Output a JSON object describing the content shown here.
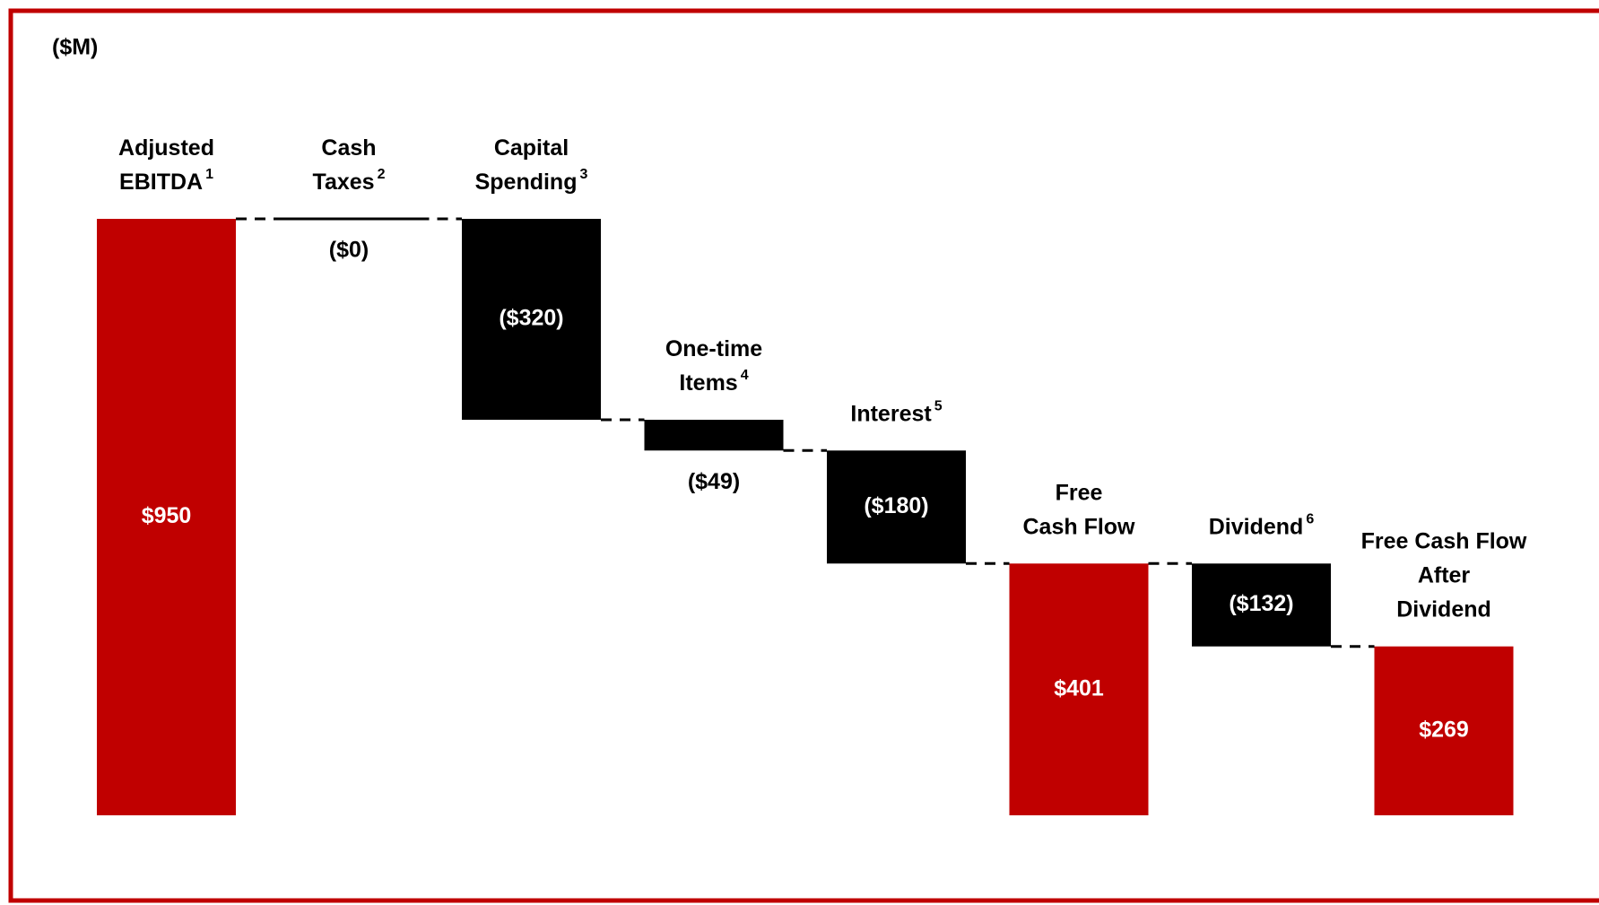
{
  "chart_data": {
    "type": "waterfall",
    "title": "($M)",
    "categories": [
      [
        "Adjusted",
        "EBITDA"
      ],
      [
        "Cash",
        "Taxes"
      ],
      [
        "Capital",
        "Spending"
      ],
      [
        "One-time",
        "Items"
      ],
      [
        "Interest"
      ],
      [
        "Free",
        "Cash Flow"
      ],
      [
        "Dividend"
      ],
      [
        "Free Cash Flow",
        "After",
        "Dividend"
      ]
    ],
    "footnotes": [
      "1",
      "2",
      "3",
      "4",
      "5",
      null,
      "6",
      null
    ],
    "measure": [
      "absolute",
      "relative",
      "relative",
      "relative",
      "relative",
      "absolute",
      "relative",
      "absolute"
    ],
    "values": [
      950,
      0,
      -320,
      -49,
      -180,
      401,
      -132,
      269
    ],
    "value_labels": [
      "$950",
      "($0)",
      "($320)",
      "($49)",
      "($180)",
      "$401",
      "($132)",
      "$269"
    ],
    "total_color": "#c00000",
    "change_color": "#000000",
    "ylim": [
      0,
      1200
    ]
  }
}
